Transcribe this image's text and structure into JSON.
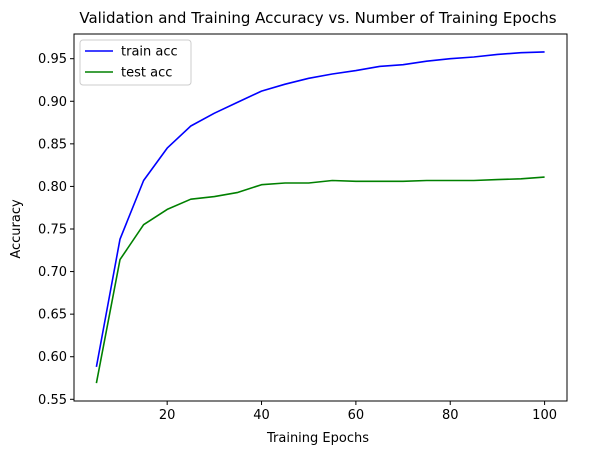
{
  "chart_data": {
    "type": "line",
    "title": "Validation and Training Accuracy vs. Number of Training Epochs",
    "xlabel": "Training Epochs",
    "ylabel": "Accuracy",
    "xlim": [
      0.25,
      104.75
    ],
    "ylim": [
      0.548,
      0.979
    ],
    "xticks": [
      20,
      40,
      60,
      80,
      100
    ],
    "yticks": [
      0.55,
      0.6,
      0.65,
      0.7,
      0.75,
      0.8,
      0.85,
      0.9,
      0.95
    ],
    "ytick_labels": [
      "0.55",
      "0.60",
      "0.65",
      "0.70",
      "0.75",
      "0.80",
      "0.85",
      "0.90",
      "0.95"
    ],
    "grid": false,
    "legend": "upper-left",
    "x": [
      5,
      10,
      15,
      20,
      25,
      30,
      35,
      40,
      45,
      50,
      55,
      60,
      65,
      70,
      75,
      80,
      85,
      90,
      95,
      100
    ],
    "series": [
      {
        "name": "train acc",
        "color": "#0000ff",
        "values": [
          0.588,
          0.738,
          0.807,
          0.845,
          0.871,
          0.886,
          0.899,
          0.912,
          0.92,
          0.927,
          0.932,
          0.936,
          0.941,
          0.943,
          0.947,
          0.95,
          0.952,
          0.955,
          0.957,
          0.958
        ]
      },
      {
        "name": "test acc",
        "color": "#008000",
        "values": [
          0.569,
          0.714,
          0.755,
          0.773,
          0.785,
          0.788,
          0.793,
          0.802,
          0.804,
          0.804,
          0.807,
          0.806,
          0.806,
          0.806,
          0.807,
          0.807,
          0.807,
          0.808,
          0.809,
          0.811
        ]
      }
    ]
  }
}
